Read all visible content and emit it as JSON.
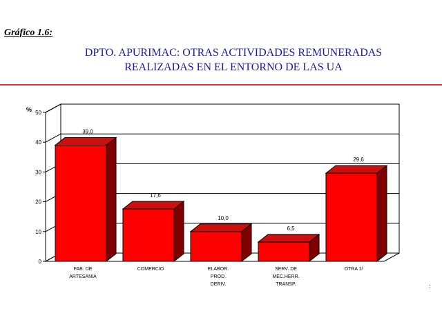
{
  "figure_label": "Gráfico 1.6:",
  "title_line1": "DPTO. APURIMAC: OTRAS ACTIVIDADES REMUNERADAS",
  "title_line2": "REALIZADAS EN EL ENTORNO DE LAS UA",
  "edge_mark": ":",
  "colors": {
    "bar_front": "#ff0000",
    "bar_top": "#cc1010",
    "bar_side": "#800000",
    "title": "#1a1aa0",
    "rule": "#e0303a"
  },
  "chart_data": {
    "type": "bar",
    "title": "DPTO. APURIMAC: OTRAS ACTIVIDADES REMUNERADAS REALIZADAS EN EL ENTORNO DE LAS UA",
    "ylabel": "%",
    "xlabel": "",
    "ylim": [
      0,
      50
    ],
    "yticks": [
      0,
      10,
      20,
      30,
      40,
      50
    ],
    "grid": true,
    "categories": [
      [
        "FAB. DE",
        "ARTESANIA"
      ],
      [
        "COMERCIO"
      ],
      [
        "ELABOR.",
        "PROD.",
        "DERIV."
      ],
      [
        "SERV. DE",
        "MEC.HERR.",
        "TRANSP."
      ],
      [
        "OTRA 1/"
      ]
    ],
    "values": [
      39.0,
      17.6,
      10.0,
      6.5,
      29.6
    ],
    "value_labels": [
      "39,0",
      "17,6",
      "10,0",
      "6,5",
      "29,6"
    ]
  }
}
